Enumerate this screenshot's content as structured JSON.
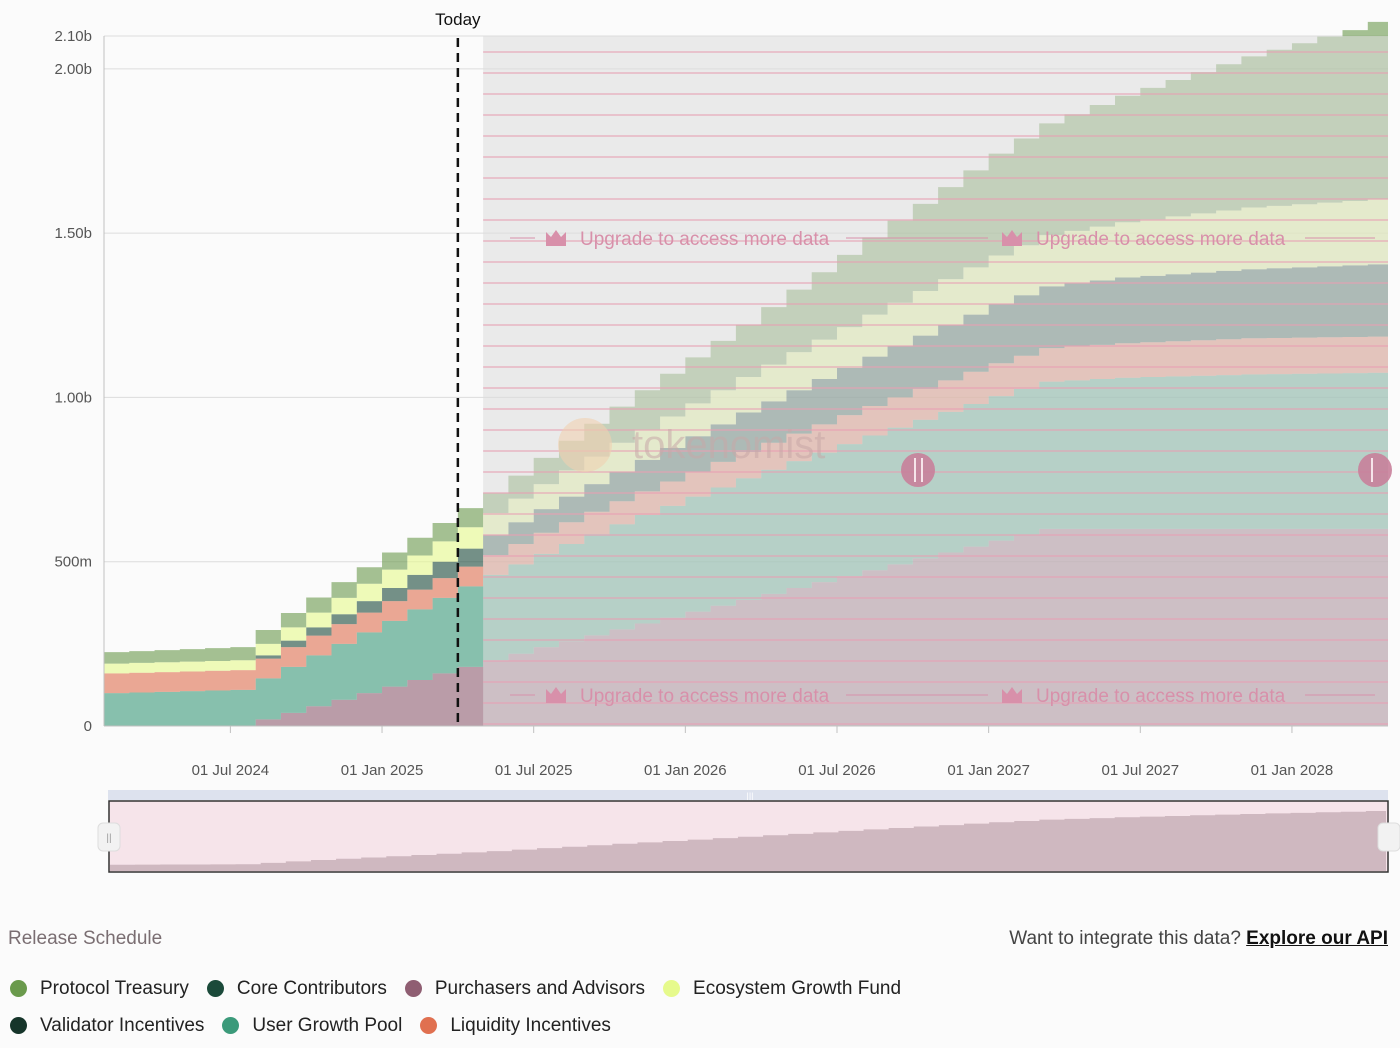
{
  "chart_data": {
    "type": "area",
    "title": "Release Schedule",
    "today_label": "Today",
    "ylim": [
      0,
      2100000000
    ],
    "ytick_values": [
      0,
      500000000,
      1000000000,
      1500000000,
      2000000000,
      2100000000
    ],
    "ytick_labels": [
      "0",
      "500m",
      "1.00b",
      "1.50b",
      "2.00b",
      "2.10b"
    ],
    "xticks": [
      {
        "label": "01 Jul 2024",
        "month": 6
      },
      {
        "label": "01 Jan 2025",
        "month": 12
      },
      {
        "label": "01 Jul 2025",
        "month": 18
      },
      {
        "label": "01 Jan 2026",
        "month": 24
      },
      {
        "label": "01 Jul 2026",
        "month": 30
      },
      {
        "label": "01 Jan 2027",
        "month": 36
      },
      {
        "label": "01 Jul 2027",
        "month": 42
      },
      {
        "label": "01 Jan 2028",
        "month": 48
      }
    ],
    "x_domain_months": [
      1,
      51.8
    ],
    "today_month": 15,
    "locked_from_month": 16,
    "x_month_zero": "2024-01-01",
    "series_stack_order": [
      "Purchasers and Advisors",
      "User Growth Pool",
      "Liquidity Incentives",
      "Core Contributors",
      "Ecosystem Growth Fund",
      "Protocol Treasury",
      "Validator Incentives"
    ],
    "series": [
      {
        "name": "Purchasers and Advisors",
        "color": "#8f5e72",
        "values": [
          0,
          0,
          0,
          0,
          0,
          0,
          20000000,
          40000000,
          60000000,
          80000000,
          100000000,
          120000000,
          140000000,
          160000000,
          180000000,
          200000000,
          220000000,
          240000000,
          258000000,
          276000000,
          294000000,
          312000000,
          330000000,
          348000000,
          366000000,
          384000000,
          402000000,
          420000000,
          438000000,
          456000000,
          474000000,
          492000000,
          510000000,
          528000000,
          546000000,
          564000000,
          582000000,
          600000000,
          600000000,
          600000000,
          600000000,
          600000000,
          600000000,
          600000000,
          600000000,
          600000000,
          600000000,
          600000000,
          600000000,
          600000000,
          600000000
        ]
      },
      {
        "name": "User Growth Pool",
        "color": "#3b9a7a",
        "values": [
          100000000,
          102000000,
          104000000,
          106000000,
          108000000,
          110000000,
          125000000,
          140000000,
          155000000,
          170000000,
          185000000,
          200000000,
          215000000,
          230000000,
          245000000,
          260000000,
          272000000,
          284000000,
          296000000,
          308000000,
          320000000,
          330000000,
          340000000,
          350000000,
          360000000,
          370000000,
          378000000,
          386000000,
          394000000,
          402000000,
          410000000,
          416000000,
          422000000,
          428000000,
          434000000,
          440000000,
          444000000,
          448000000,
          452000000,
          456000000,
          460000000,
          462000000,
          464000000,
          466000000,
          468000000,
          470000000,
          471000000,
          472000000,
          473000000,
          474000000,
          475000000
        ]
      },
      {
        "name": "Liquidity Incentives",
        "color": "#e07050",
        "values": [
          60000000,
          60000000,
          60000000,
          60000000,
          60000000,
          60000000,
          60000000,
          60000000,
          60000000,
          60000000,
          60000000,
          60000000,
          60000000,
          60000000,
          60000000,
          60000000,
          62000000,
          64000000,
          66000000,
          68000000,
          70000000,
          72000000,
          74000000,
          76000000,
          78000000,
          80000000,
          82000000,
          84000000,
          86000000,
          88000000,
          90000000,
          92000000,
          94000000,
          96000000,
          98000000,
          100000000,
          101000000,
          102000000,
          103000000,
          104000000,
          105000000,
          106000000,
          107000000,
          108000000,
          109000000,
          110000000,
          110000000,
          110000000,
          110000000,
          110000000,
          110000000
        ]
      },
      {
        "name": "Core Contributors",
        "color": "#1b4a3a",
        "values": [
          0,
          0,
          0,
          0,
          0,
          0,
          10000000,
          20000000,
          25000000,
          30000000,
          35000000,
          40000000,
          45000000,
          50000000,
          55000000,
          60000000,
          66000000,
          72000000,
          78000000,
          84000000,
          90000000,
          96000000,
          102000000,
          108000000,
          114000000,
          120000000,
          126000000,
          132000000,
          138000000,
          144000000,
          150000000,
          156000000,
          162000000,
          168000000,
          174000000,
          180000000,
          184000000,
          188000000,
          192000000,
          196000000,
          200000000,
          202000000,
          204000000,
          206000000,
          208000000,
          210000000,
          212000000,
          214000000,
          216000000,
          218000000,
          220000000
        ]
      },
      {
        "name": "Ecosystem Growth Fund",
        "color": "#e6fa8c",
        "values": [
          30000000,
          30000000,
          30000000,
          30000000,
          30000000,
          30000000,
          35000000,
          40000000,
          45000000,
          50000000,
          53000000,
          56000000,
          59000000,
          62000000,
          65000000,
          68000000,
          72000000,
          76000000,
          80000000,
          84000000,
          88000000,
          92000000,
          96000000,
          100000000,
          104000000,
          108000000,
          112000000,
          116000000,
          120000000,
          124000000,
          128000000,
          132000000,
          136000000,
          140000000,
          144000000,
          148000000,
          152000000,
          156000000,
          160000000,
          164000000,
          168000000,
          172000000,
          176000000,
          180000000,
          184000000,
          188000000,
          190000000,
          192000000,
          194000000,
          196000000,
          198000000
        ]
      },
      {
        "name": "Protocol Treasury",
        "color": "#6a9a4c",
        "values": [
          35000000,
          36000000,
          37000000,
          38000000,
          39000000,
          40000000,
          42000000,
          44000000,
          46000000,
          48000000,
          50000000,
          52000000,
          54000000,
          56000000,
          58000000,
          60000000,
          70000000,
          80000000,
          90000000,
          100000000,
          110000000,
          120000000,
          130000000,
          140000000,
          150000000,
          160000000,
          175000000,
          190000000,
          205000000,
          220000000,
          235000000,
          250000000,
          265000000,
          280000000,
          295000000,
          310000000,
          325000000,
          340000000,
          355000000,
          370000000,
          385000000,
          400000000,
          415000000,
          430000000,
          445000000,
          460000000,
          475000000,
          490000000,
          505000000,
          520000000,
          540000000
        ]
      },
      {
        "name": "Validator Incentives",
        "color": "#16352a",
        "values": [
          0,
          0,
          0,
          0,
          0,
          0,
          0,
          0,
          0,
          0,
          0,
          0,
          0,
          0,
          0,
          0,
          0,
          0,
          0,
          0,
          0,
          0,
          0,
          0,
          0,
          0,
          0,
          0,
          0,
          0,
          0,
          0,
          0,
          0,
          0,
          0,
          0,
          0,
          0,
          0,
          0,
          0,
          0,
          0,
          0,
          0,
          0,
          0,
          0,
          0,
          0
        ]
      }
    ]
  },
  "upgrade_text": "Upgrade to access more data",
  "watermark": "tokenomist",
  "footer": {
    "section_title": "Release Schedule",
    "api_prompt": "Want to integrate this data?",
    "api_link": "Explore our API"
  },
  "legend": {
    "row1": [
      {
        "label": "Protocol Treasury",
        "color": "#6a9a4c"
      },
      {
        "label": "Core Contributors",
        "color": "#1b4a3a"
      },
      {
        "label": "Purchasers and Advisors",
        "color": "#8f5e72"
      },
      {
        "label": "Ecosystem Growth Fund",
        "color": "#e6fa8c"
      }
    ],
    "row2": [
      {
        "label": "Validator Incentives",
        "color": "#16352a"
      },
      {
        "label": "User Growth Pool",
        "color": "#3b9a7a"
      },
      {
        "label": "Liquidity Incentives",
        "color": "#e07050"
      }
    ]
  },
  "colors": {
    "locked_overlay": "#dcdcdc",
    "locked_line": "#e8a0b4",
    "upgrade_text": "#d890aa",
    "navigator_fill": "#f6e4ea",
    "navigator_area": "#c8b0b8"
  }
}
